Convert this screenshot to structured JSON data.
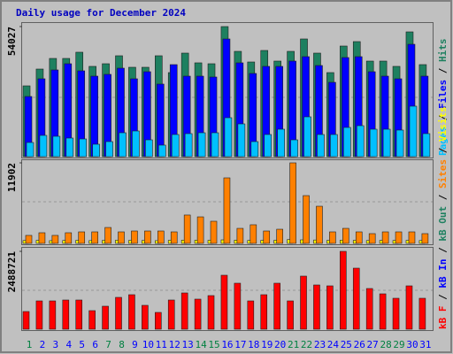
{
  "chart_data": [
    {
      "type": "bar",
      "title": "Daily usage for December 2024",
      "legend_separator": " / ",
      "ylim": [
        0,
        54027
      ],
      "yticks": [
        54027
      ],
      "series": [
        {
          "name": "Hits",
          "color": "#1e8060",
          "values": [
            29400,
            36380,
            40790,
            40790,
            43370,
            37490,
            38590,
            41900,
            37120,
            37120,
            41900,
            34910,
            43000,
            38960,
            38590,
            54027,
            43730,
            39320,
            44100,
            39690,
            43730,
            48880,
            43000,
            34910,
            45940,
            47780,
            39690,
            39690,
            37490,
            51820,
            38220
          ]
        },
        {
          "name": "Files",
          "color": "#0000ff",
          "values": [
            24990,
            32340,
            36020,
            38590,
            35650,
            33440,
            34180,
            36750,
            32340,
            35280,
            30140,
            38220,
            33440,
            33440,
            33080,
            48880,
            38960,
            34550,
            37490,
            37490,
            39690,
            41530,
            37850,
            30870,
            41160,
            41530,
            35280,
            33440,
            32340,
            46670,
            33440
          ]
        },
        {
          "name": "Pages",
          "color": "#00c0ff",
          "values": [
            5880,
            8820,
            8450,
            7720,
            7350,
            5150,
            6250,
            9920,
            10660,
            6980,
            4780,
            9190,
            9560,
            9920,
            9920,
            16170,
            13600,
            6250,
            9190,
            11390,
            6980,
            16540,
            9190,
            9190,
            12130,
            12860,
            11390,
            11390,
            11030,
            20950,
            9560
          ]
        }
      ]
    },
    {
      "type": "bar",
      "ylim": [
        0,
        11902
      ],
      "yticks": [
        11902
      ],
      "series": [
        {
          "name": "Visits",
          "color": "#ffff00",
          "values": [
            420,
            450,
            400,
            430,
            460,
            410,
            450,
            470,
            440,
            430,
            400,
            450,
            480,
            470,
            460,
            520,
            480,
            440,
            450,
            470,
            560,
            520,
            500,
            440,
            470,
            450,
            420,
            440,
            430,
            450,
            420
          ]
        },
        {
          "name": "Sites",
          "color": "#ff8000",
          "values": [
            1180,
            1570,
            1180,
            1570,
            1700,
            1700,
            2350,
            1700,
            1830,
            1830,
            1830,
            1700,
            4190,
            3920,
            3270,
            9680,
            2220,
            2750,
            1830,
            2090,
            11902,
            7060,
            5490,
            1700,
            2220,
            1700,
            1440,
            1700,
            1700,
            1700,
            1440
          ]
        }
      ]
    },
    {
      "type": "bar",
      "ylim": [
        0,
        2488721
      ],
      "yticks": [
        2488721
      ],
      "categories": [
        "1",
        "2",
        "3",
        "4",
        "5",
        "6",
        "7",
        "8",
        "9",
        "10",
        "11",
        "12",
        "13",
        "14",
        "15",
        "16",
        "17",
        "18",
        "19",
        "20",
        "21",
        "22",
        "23",
        "24",
        "25",
        "26",
        "27",
        "28",
        "29",
        "30",
        "31"
      ],
      "category_colors": [
        "#008040",
        "#0000ff",
        "#0000ff",
        "#0000ff",
        "#0000ff",
        "#0000ff",
        "#008040",
        "#008040",
        "#0000ff",
        "#0000ff",
        "#0000ff",
        "#0000ff",
        "#0000ff",
        "#008040",
        "#008040",
        "#0000ff",
        "#0000ff",
        "#0000ff",
        "#0000ff",
        "#0000ff",
        "#008040",
        "#008040",
        "#0000ff",
        "#0000ff",
        "#0000ff",
        "#0000ff",
        "#0000ff",
        "#008040",
        "#008040",
        "#0000ff",
        "#0000ff"
      ],
      "series": [
        {
          "name": "kB F",
          "color": "#ff0000",
          "values": [
            565600,
            905000,
            905000,
            933300,
            933300,
            593900,
            735300,
            1018100,
            1103000,
            763600,
            537300,
            933300,
            1159500,
            961600,
            1074700,
            1725100,
            1470600,
            905000,
            1103000,
            1470600,
            905000,
            1696900,
            1414100,
            1385800,
            2488721,
            1951400,
            1300900,
            1131200,
            989800,
            1385800,
            989800
          ]
        },
        {
          "name": "kB In",
          "color": "#0000ff",
          "values": [
            null,
            null,
            null,
            null,
            null,
            null,
            null,
            null,
            null,
            null,
            null,
            null,
            null,
            null,
            null,
            null,
            null,
            null,
            null,
            null,
            null,
            null,
            null,
            null,
            null,
            null,
            null,
            null,
            null,
            null,
            null
          ]
        },
        {
          "name": "kB Out",
          "color": "#1e8060",
          "values": [
            null,
            null,
            null,
            null,
            null,
            null,
            null,
            null,
            null,
            null,
            null,
            null,
            null,
            null,
            null,
            null,
            null,
            null,
            null,
            null,
            null,
            null,
            null,
            null,
            null,
            null,
            null,
            null,
            null,
            null,
            null
          ]
        }
      ]
    }
  ]
}
